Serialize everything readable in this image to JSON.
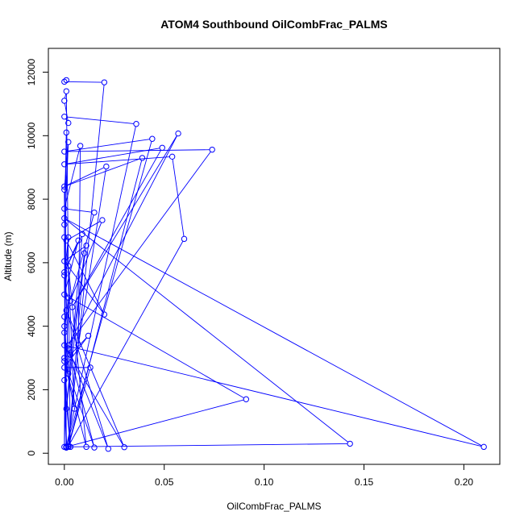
{
  "chart_data": {
    "type": "line",
    "title": "ATOM4 Southbound OilCombFrac_PALMS",
    "xlabel": "OilCombFrac_PALMS",
    "ylabel": "Altitude (m)",
    "xlim": [
      -0.008,
      0.218
    ],
    "ylim": [
      -350,
      12750
    ],
    "x_ticks": [
      0,
      0.05,
      0.1,
      0.15,
      0.2
    ],
    "x_tick_labels": [
      "0.00",
      "0.05",
      "0.10",
      "0.15",
      "0.20"
    ],
    "y_ticks": [
      0,
      2000,
      4000,
      6000,
      8000,
      10000,
      12000
    ],
    "y_tick_labels": [
      "0",
      "2000",
      "4000",
      "6000",
      "8000",
      "10000",
      "12000"
    ],
    "color": "#0000ff",
    "marker": "open-circle",
    "grid": false,
    "series": [
      {
        "points": [
          [
            0.001,
            11750
          ],
          [
            0.0,
            11700
          ],
          [
            0.02,
            11680
          ],
          [
            0.002,
            200
          ],
          [
            0.003,
            200
          ],
          [
            0.001,
            11400
          ],
          [
            0.0,
            11100
          ],
          [
            0.002,
            10400
          ],
          [
            0.0,
            10600
          ],
          [
            0.036,
            10370
          ],
          [
            0.001,
            210
          ],
          [
            0.044,
            9900
          ],
          [
            0.0,
            9500
          ],
          [
            0.074,
            9560
          ],
          [
            0.002,
            3400
          ],
          [
            0.057,
            10070
          ],
          [
            0.004,
            4600
          ],
          [
            0.049,
            9620
          ],
          [
            0.0,
            9100
          ],
          [
            0.054,
            9340
          ],
          [
            0.06,
            6750
          ],
          [
            0.002,
            220
          ],
          [
            0.039,
            9300
          ],
          [
            0.0,
            8400
          ],
          [
            0.021,
            9030
          ],
          [
            0.007,
            3400
          ],
          [
            0.008,
            9680
          ],
          [
            0.0,
            7700
          ],
          [
            0.015,
            7580
          ],
          [
            0.003,
            4800
          ],
          [
            0.019,
            7340
          ],
          [
            0.001,
            6700
          ],
          [
            0.02,
            4370
          ],
          [
            0.0,
            6050
          ],
          [
            0.011,
            6540
          ],
          [
            0.003,
            3100
          ],
          [
            0.012,
            3700
          ],
          [
            0.0,
            2700
          ],
          [
            0.013,
            2700
          ],
          [
            0.002,
            200
          ],
          [
            0.01,
            6300
          ],
          [
            0.001,
            1400
          ],
          [
            0.009,
            6900
          ],
          [
            0.0,
            5700
          ],
          [
            0.007,
            6700
          ],
          [
            0.0,
            5000
          ],
          [
            0.091,
            1700
          ],
          [
            0.001,
            200
          ],
          [
            0.143,
            300
          ],
          [
            0.0,
            7400
          ],
          [
            0.21,
            200
          ],
          [
            0.0,
            3400
          ],
          [
            0.03,
            190
          ],
          [
            0.001,
            4500
          ],
          [
            0.022,
            140
          ],
          [
            0.002,
            3300
          ],
          [
            0.015,
            180
          ],
          [
            0.0,
            2900
          ],
          [
            0.011,
            200
          ],
          [
            0.002,
            5900
          ],
          [
            0.005,
            1400
          ],
          [
            0.0,
            3000
          ],
          [
            0.003,
            200
          ],
          [
            0.0,
            2300
          ],
          [
            0.001,
            180
          ],
          [
            0.0,
            5600
          ],
          [
            0.002,
            6800
          ],
          [
            0.0,
            4300
          ],
          [
            0.001,
            190
          ],
          [
            0.0,
            8300
          ],
          [
            0.002,
            9800
          ],
          [
            0.0,
            6800
          ],
          [
            0.001,
            180
          ],
          [
            0.0,
            4000
          ],
          [
            0.002,
            2500
          ],
          [
            0.0,
            7200
          ],
          [
            0.001,
            10100
          ],
          [
            0.0,
            200
          ],
          [
            0.002,
            4900
          ],
          [
            0.0,
            3800
          ],
          [
            0.001,
            180
          ]
        ]
      }
    ]
  }
}
